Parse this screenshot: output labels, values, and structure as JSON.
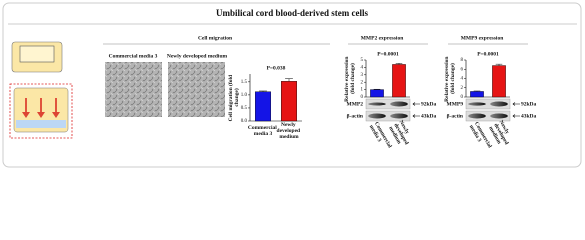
{
  "title": "Umbilical cord blood-derived stem cells",
  "panels": {
    "migration": {
      "title": "Cell migration",
      "image_labels": [
        "Commercial media 3",
        "Newly developed medium"
      ]
    },
    "mmp2": {
      "title": "MMP2 expression",
      "blot": {
        "rows": [
          "MMP2",
          "β-actin"
        ],
        "sizes": [
          "92kDa",
          "43kDa"
        ]
      }
    },
    "mmp9": {
      "title": "MMP9 expression",
      "blot": {
        "rows": [
          "MMP9",
          "β-actin"
        ],
        "sizes": [
          "92kDa",
          "43kDa"
        ]
      }
    }
  },
  "chart_data": [
    {
      "type": "bar",
      "ylabel": "Cell migration (fold change)",
      "annotation": "P=0.038",
      "categories": [
        "Commercial media 3",
        "Newly developed medium"
      ],
      "values": [
        1.12,
        1.52
      ],
      "errors": [
        0.03,
        0.1
      ],
      "colors": [
        "#1414e6",
        "#e61414"
      ],
      "ylim": [
        0,
        1.8
      ],
      "yticks": [
        {
          "value": 0,
          "label": "0.0"
        },
        {
          "value": 0.5,
          "label": "0.5"
        },
        {
          "value": 1,
          "label": "1.0"
        },
        {
          "value": 1.5,
          "label": "1.5"
        }
      ]
    },
    {
      "type": "bar",
      "ylabel": "Relative expression (fold change)",
      "annotation": "P=0.0001",
      "categories": [
        "Commercial media 3",
        "Newly developed medium"
      ],
      "values": [
        1,
        4.4
      ],
      "errors": [
        0.05,
        0.15
      ],
      "colors": [
        "#1414e6",
        "#e61414"
      ],
      "ylim": [
        0,
        5
      ],
      "yticks": [
        0,
        1,
        2,
        3,
        4,
        5
      ]
    },
    {
      "type": "bar",
      "ylabel": "Relative expression (fold change)",
      "annotation": "P=0.0001",
      "categories": [
        "Commercial media 3",
        "Newly developed medium"
      ],
      "values": [
        1.2,
        6.8
      ],
      "errors": [
        0.1,
        0.3
      ],
      "colors": [
        "#1414e6",
        "#e61414"
      ],
      "ylim": [
        0,
        8
      ],
      "yticks": [
        0,
        2,
        4,
        6,
        8
      ]
    }
  ]
}
